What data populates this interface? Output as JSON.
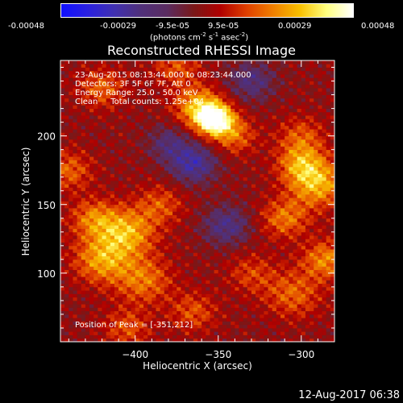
{
  "colorbar": {
    "tick_labels": [
      "-0.00048",
      "-0.00029",
      "-9.5e-05",
      "9.5e-05",
      "0.00029",
      "0.00048"
    ],
    "units_text": "(photons cm",
    "units_sup1": "-2",
    "units_s": " s",
    "units_sup2": "-1",
    "units_asec": " asec",
    "units_sup3": "-2",
    "units_close": ")",
    "colors": [
      "#1010ff",
      "#2a20e0",
      "#4030b0",
      "#50307a",
      "#5a2c60",
      "#7a1818",
      "#b00000",
      "#e04000",
      "#f08000",
      "#f8c000",
      "#ffff80",
      "#ffffff"
    ]
  },
  "chart_data": {
    "type": "heatmap",
    "title": "Reconstructed RHESSI Image",
    "xlabel": "Heliocentric X (arcsec)",
    "ylabel": "Heliocentric Y (arcsec)",
    "xlim": [
      -445,
      -280
    ],
    "ylim": [
      50,
      255
    ],
    "x_ticks": [
      -400,
      -350,
      -300
    ],
    "x_tick_labels": [
      "−400",
      "−350",
      "−300"
    ],
    "y_ticks": [
      100,
      150,
      200
    ],
    "y_tick_labels": [
      "100",
      "150",
      "200"
    ],
    "value_range": [
      -0.00048,
      0.00048
    ],
    "peak_position": [
      -351,
      212
    ],
    "annotations": {
      "time_range": "23-Aug-2015 08:13:44.000 to 08:23:44.000",
      "detectors": "Detectors: 3F 5F 6F 7F, Att 0",
      "energy": "Energy Range: 25.0 - 50.0 keV",
      "clean": "Clean     Total counts: 1.25e+04",
      "peak": "Position of Peak = [-351,212]"
    }
  },
  "timestamp": "12-Aug-2017 06:38"
}
